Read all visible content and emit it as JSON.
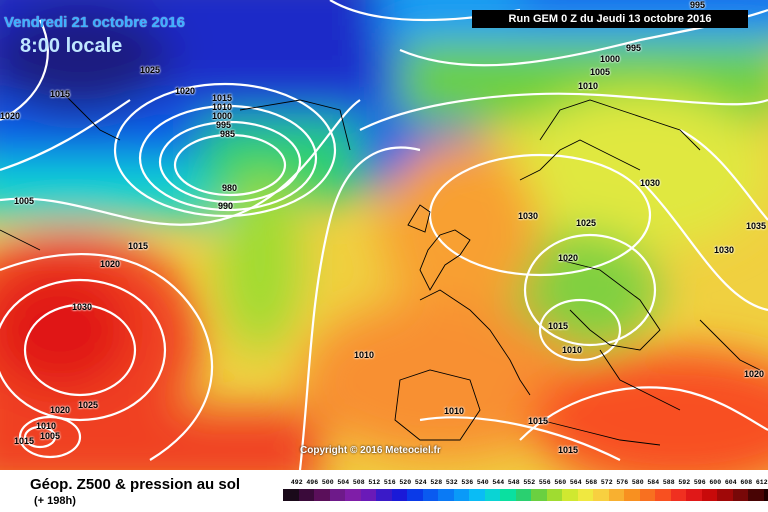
{
  "header": {
    "date": "Vendredi 21 octobre 2016",
    "time": "8:00 locale",
    "run": "Run GEM 0 Z du Jeudi 13 octobre 2016"
  },
  "copyright": "Copyright © 2016 Meteociel.fr",
  "footer": {
    "title": "Géop. Z500 & pression au sol",
    "subtitle": "(+ 198h)"
  },
  "isobar_labels": [
    "995",
    "995",
    "1000",
    "1005",
    "1010",
    "1030",
    "1015",
    "1020",
    "1020",
    "1025",
    "1015",
    "1010",
    "1000",
    "995",
    "985",
    "980",
    "990",
    "1005",
    "1015",
    "1020",
    "1030",
    "1020",
    "1025",
    "1010",
    "1005",
    "1015",
    "1010",
    "1030",
    "1025",
    "1030",
    "1020",
    "1015",
    "1010",
    "1010",
    "1015",
    "1015",
    "1020",
    "1035"
  ],
  "scale": {
    "ticks": [
      "492",
      "496",
      "500",
      "504",
      "508",
      "512",
      "516",
      "520",
      "524",
      "528",
      "532",
      "536",
      "540",
      "544",
      "548",
      "552",
      "556",
      "560",
      "564",
      "568",
      "572",
      "576",
      "580",
      "584",
      "588",
      "592",
      "596",
      "600",
      "604",
      "608",
      "612"
    ],
    "colors": [
      "#1a0a1a",
      "#3a0a3a",
      "#5a0f5a",
      "#6e1a8a",
      "#7f1ea8",
      "#6a1ab8",
      "#3a1ac8",
      "#1a1ad8",
      "#0a3ae8",
      "#0a5af0",
      "#0a7af5",
      "#0a9af8",
      "#0abcf5",
      "#0ad4d4",
      "#0ae0a0",
      "#2ad070",
      "#6ad040",
      "#a0dc30",
      "#d0e830",
      "#f0e840",
      "#f8d040",
      "#f8b030",
      "#f89020",
      "#f87020",
      "#f85020",
      "#f03020",
      "#e01818",
      "#c80a0a",
      "#a00808",
      "#780808",
      "#480404",
      "#200000"
    ]
  }
}
